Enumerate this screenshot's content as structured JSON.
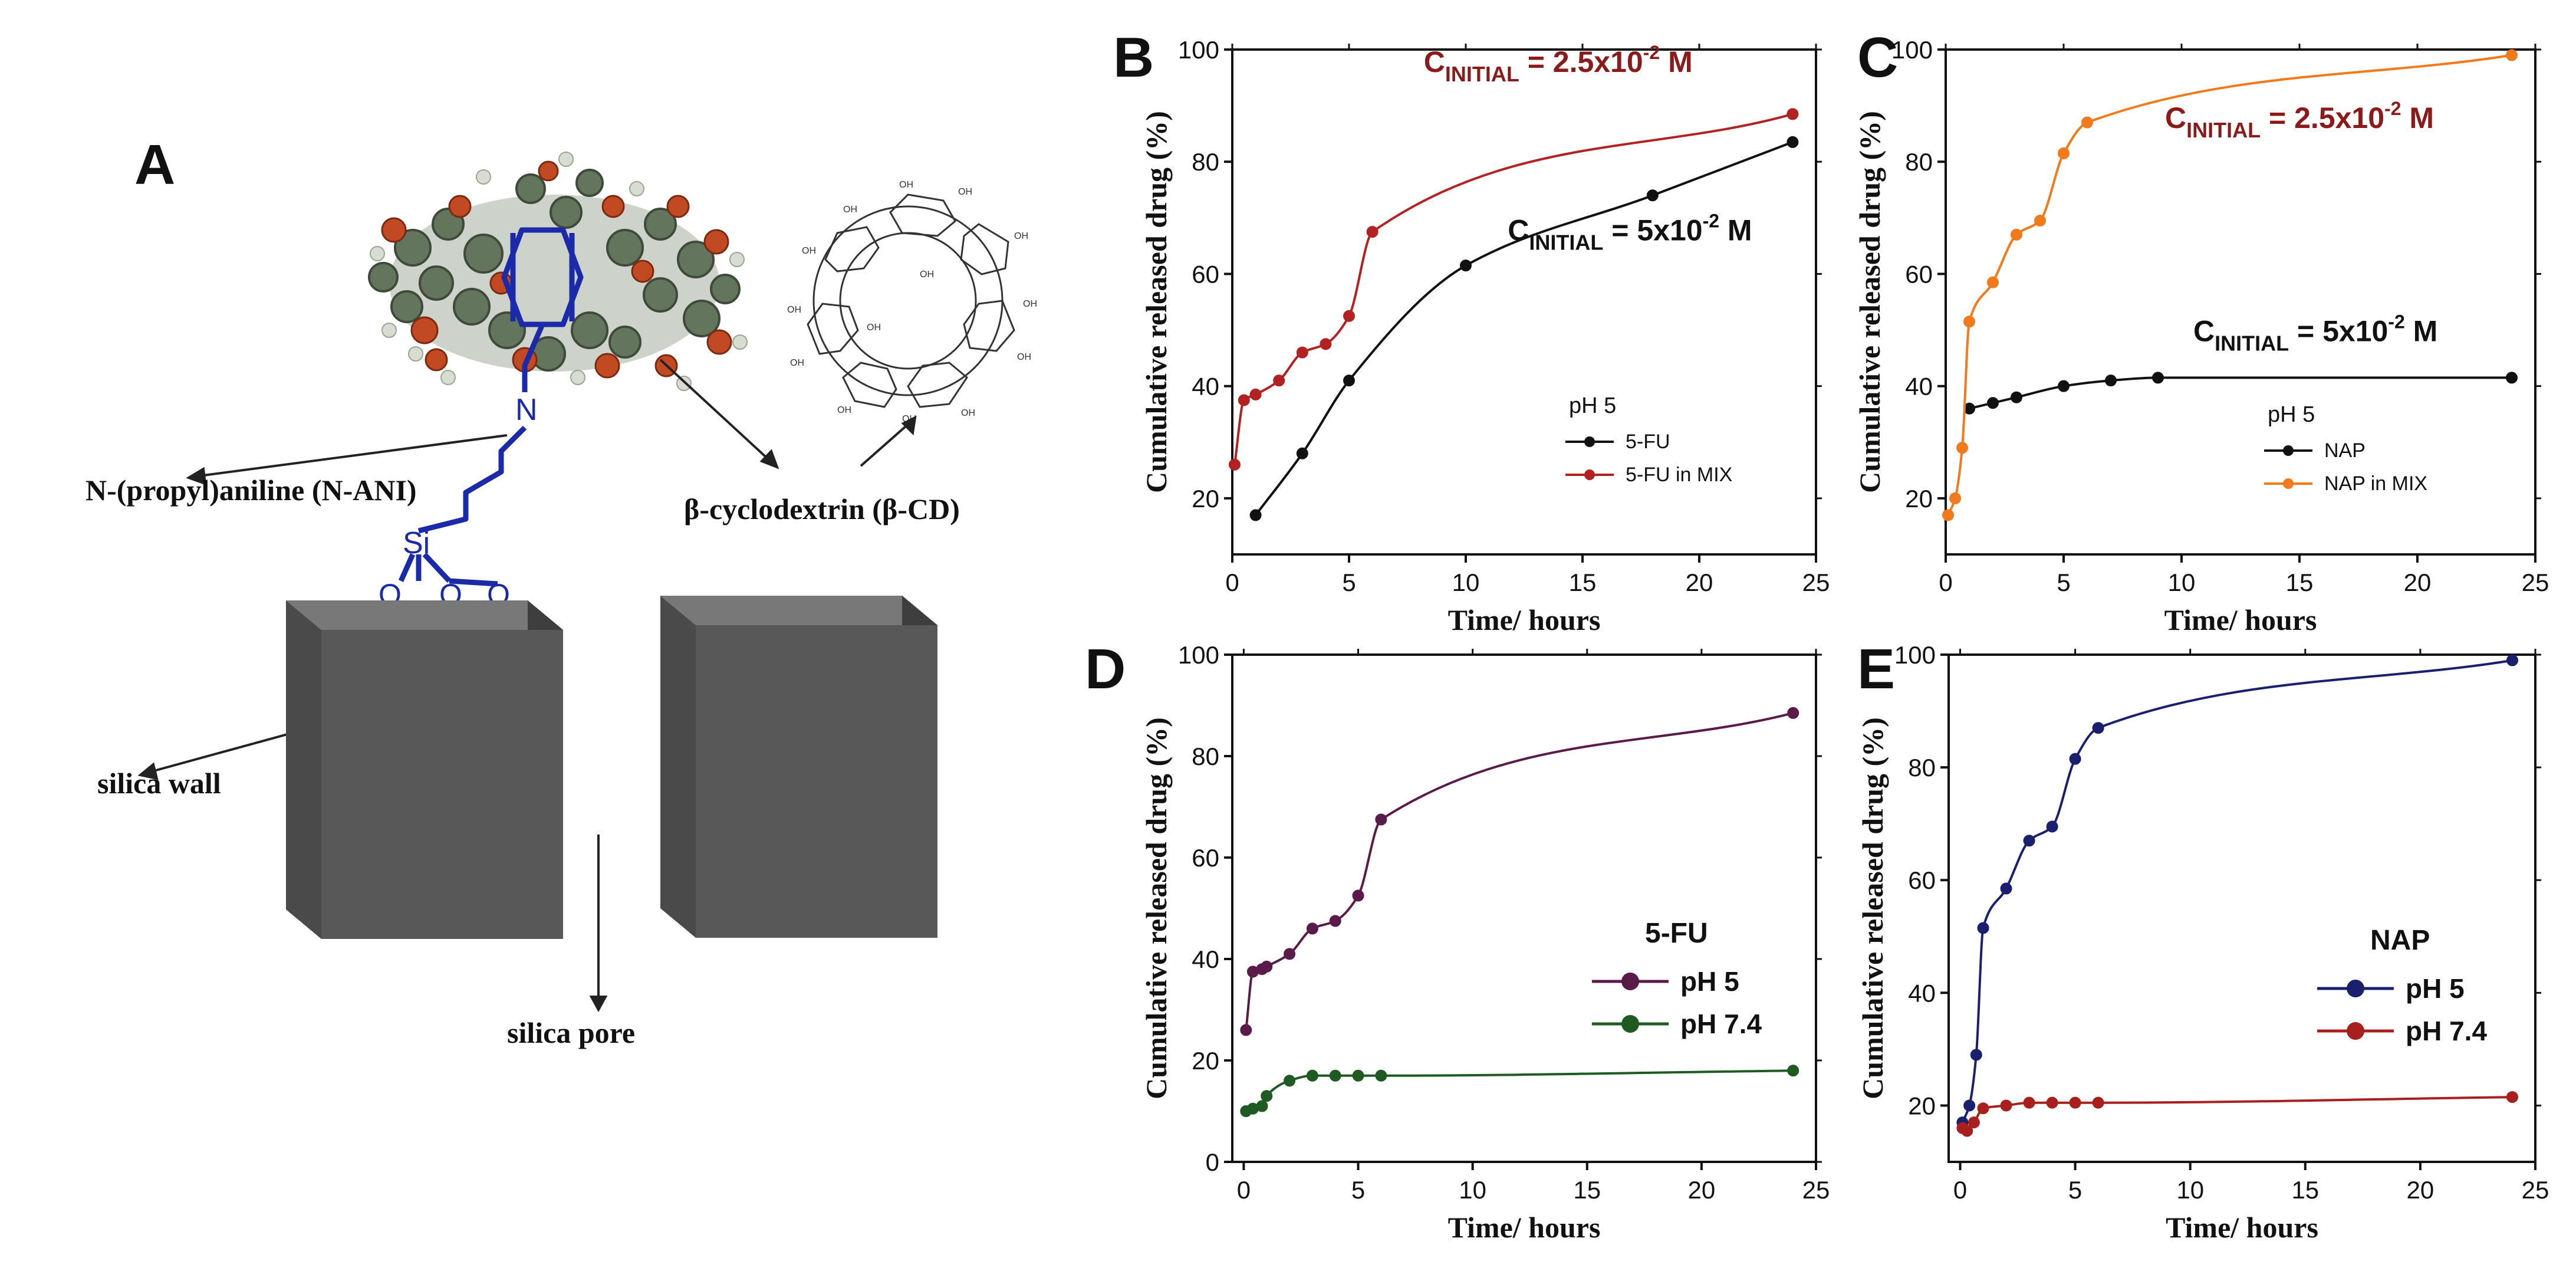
{
  "panel_a": {
    "letter": "A",
    "label_aniline": "N-(propyl)aniline (N-ANI)",
    "label_cd": "β-cyclodextrin (β-CD)",
    "label_wall": "silica wall",
    "label_pore": "silica pore",
    "atom_n": "N",
    "atom_si": "Si",
    "atom_o": "O",
    "oh": "OH"
  },
  "colors": {
    "black_series": "#111111",
    "red_series": "#b22222",
    "orange_series": "#f07a1c",
    "purple_series": "#5a1a4a",
    "green_series": "#1e5a22",
    "navy_series": "#1a1f6e",
    "red2_series": "#a8201e",
    "cinit_red": "#8b1a1a",
    "linker_blue": "#1a2aa8",
    "block_front": "#585858",
    "block_top": "#787878",
    "block_side": "#3e3e3e"
  },
  "chart_data": [
    {
      "id": "B",
      "letter": "B",
      "type": "line",
      "xlabel": "Time/ hours",
      "ylabel": "Cumulative released drug (%)",
      "xlim": [
        0,
        25
      ],
      "ylim": [
        10,
        100
      ],
      "xticks": [
        0,
        5,
        10,
        15,
        20,
        25
      ],
      "yticks": [
        20,
        40,
        60,
        80,
        100
      ],
      "legend_title": "pH 5",
      "legend_style": "small",
      "annotations": [
        {
          "text_main": "C",
          "text_sub": "INITIAL",
          "text_mid": " = 2.5x10",
          "text_sup": "-2",
          "text_end": " M",
          "color": "red",
          "anchor": [
            8.2,
            96
          ]
        },
        {
          "text_main": "C",
          "text_sub": "INITIAL",
          "text_mid": " = 5x10",
          "text_sup": "-2",
          "text_end": " M",
          "color": "black",
          "anchor": [
            11.8,
            66
          ]
        }
      ],
      "series": [
        {
          "name": "5-FU",
          "color_key": "black_series",
          "x": [
            1,
            3,
            5,
            10,
            18,
            24
          ],
          "y": [
            17,
            28,
            41,
            61.5,
            74,
            83.5
          ]
        },
        {
          "name": "5-FU in MIX",
          "color_key": "red_series",
          "x": [
            0.1,
            0.5,
            1,
            2,
            3,
            4,
            5,
            6,
            24
          ],
          "y": [
            26,
            37.5,
            38.5,
            41,
            46,
            47.5,
            52.5,
            67.5,
            88.5
          ]
        }
      ]
    },
    {
      "id": "C",
      "letter": "C",
      "type": "line",
      "xlabel": "Time/ hours",
      "ylabel": "Cumulative released drug (%)",
      "xlim": [
        0,
        25
      ],
      "ylim": [
        10,
        100
      ],
      "xticks": [
        0,
        5,
        10,
        15,
        20,
        25
      ],
      "yticks": [
        20,
        40,
        60,
        80,
        100
      ],
      "legend_title": "pH 5",
      "legend_style": "small",
      "annotations": [
        {
          "text_main": "C",
          "text_sub": "INITIAL",
          "text_mid": " = 2.5x10",
          "text_sup": "-2",
          "text_end": " M",
          "color": "red",
          "anchor": [
            9.3,
            86
          ]
        },
        {
          "text_main": "C",
          "text_sub": "INITIAL",
          "text_mid": " = 5x10",
          "text_sup": "-2",
          "text_end": " M",
          "color": "black",
          "anchor": [
            10.5,
            48
          ]
        }
      ],
      "series": [
        {
          "name": "NAP",
          "color_key": "black_series",
          "x": [
            1,
            2,
            3,
            5,
            7,
            9,
            24
          ],
          "y": [
            36,
            37,
            38,
            40,
            41,
            41.5,
            41.5
          ]
        },
        {
          "name": "NAP in MIX",
          "color_key": "orange_series",
          "x": [
            0.1,
            0.4,
            0.7,
            1,
            2,
            3,
            4,
            5,
            6,
            24
          ],
          "y": [
            17,
            20,
            29,
            51.5,
            58.5,
            67,
            69.5,
            81.5,
            87,
            99
          ]
        }
      ]
    },
    {
      "id": "D",
      "letter": "D",
      "type": "line",
      "xlabel": "Time/ hours",
      "ylabel": "Cumulative released drug (%)",
      "xlim": [
        -0.5,
        25
      ],
      "ylim": [
        0,
        100
      ],
      "xticks": [
        0,
        5,
        10,
        15,
        20,
        25
      ],
      "yticks": [
        0,
        20,
        40,
        60,
        80,
        100
      ],
      "legend_title": "5-FU",
      "legend_style": "large",
      "annotations": [],
      "series": [
        {
          "name": "pH 5",
          "color_key": "purple_series",
          "x": [
            0.1,
            0.4,
            0.8,
            1,
            2,
            3,
            4,
            5,
            6,
            24
          ],
          "y": [
            26,
            37.5,
            38,
            38.5,
            41,
            46,
            47.5,
            52.5,
            67.5,
            88.5
          ]
        },
        {
          "name": "pH 7.4",
          "color_key": "green_series",
          "x": [
            0.1,
            0.4,
            0.8,
            1,
            2,
            3,
            4,
            5,
            6,
            24
          ],
          "y": [
            10,
            10.5,
            11,
            13,
            16,
            17,
            17,
            17,
            17,
            18
          ]
        }
      ]
    },
    {
      "id": "E",
      "letter": "E",
      "type": "line",
      "xlabel": "Time/ hours",
      "ylabel": "Cumulative released drug (%)",
      "xlim": [
        -0.5,
        25
      ],
      "ylim": [
        10,
        100
      ],
      "xticks": [
        0,
        5,
        10,
        15,
        20,
        25
      ],
      "yticks": [
        20,
        40,
        60,
        80,
        100
      ],
      "legend_title": "NAP",
      "legend_style": "large",
      "annotations": [],
      "series": [
        {
          "name": "pH 5",
          "color_key": "navy_series",
          "x": [
            0.1,
            0.4,
            0.7,
            1,
            2,
            3,
            4,
            5,
            6,
            24
          ],
          "y": [
            17,
            20,
            29,
            51.5,
            58.5,
            67,
            69.5,
            81.5,
            87,
            99
          ]
        },
        {
          "name": "pH 7.4",
          "color_key": "red2_series",
          "x": [
            0.1,
            0.3,
            0.6,
            1,
            2,
            3,
            4,
            5,
            6,
            24
          ],
          "y": [
            16,
            15.5,
            17,
            19.5,
            20,
            20.5,
            20.5,
            20.5,
            20.5,
            21.5
          ]
        }
      ]
    }
  ]
}
